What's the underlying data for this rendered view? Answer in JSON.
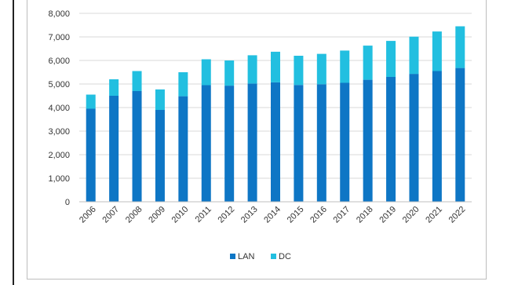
{
  "chart_data": {
    "type": "bar",
    "stacked": true,
    "categories": [
      "2006",
      "2007",
      "2008",
      "2009",
      "2010",
      "2011",
      "2012",
      "2013",
      "2014",
      "2015",
      "2016",
      "2017",
      "2018",
      "2019",
      "2020",
      "2021",
      "2022"
    ],
    "series": [
      {
        "name": "LAN",
        "color": "#0e76c5",
        "values": [
          3950,
          4500,
          4700,
          3900,
          4480,
          4950,
          4930,
          5020,
          5070,
          4960,
          4990,
          5050,
          5180,
          5300,
          5430,
          5550,
          5680
        ]
      },
      {
        "name": "DC",
        "color": "#22bfe0",
        "values": [
          600,
          700,
          850,
          870,
          1020,
          1100,
          1070,
          1200,
          1300,
          1240,
          1290,
          1370,
          1450,
          1530,
          1580,
          1680,
          1770
        ]
      }
    ],
    "ylim": [
      0,
      8000
    ],
    "yticks": [
      "0",
      "1,000",
      "2,000",
      "3,000",
      "4,000",
      "5,000",
      "6,000",
      "7,000",
      "8,000"
    ],
    "grid": true,
    "legend_position": "bottom"
  }
}
